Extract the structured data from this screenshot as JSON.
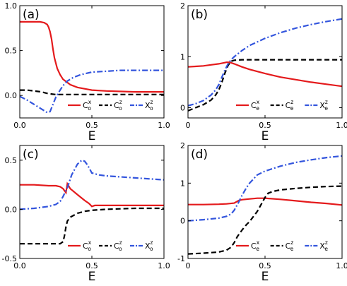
{
  "colors": {
    "red": "#e41a1c",
    "black": "#000000",
    "blue": "#3355dd"
  },
  "chart_data": [
    {
      "type": "line",
      "panel_label": "(a)",
      "xlabel": "E",
      "xlim": [
        0,
        1
      ],
      "ylim": [
        -0.25,
        1.0
      ],
      "x_ticks": [
        0,
        0.5,
        1
      ],
      "x_tick_labels": [
        "0.0",
        "0.5",
        "1.0"
      ],
      "y_ticks": [
        0,
        0.5,
        1.0
      ],
      "y_tick_labels": [
        "0.0",
        "0.5",
        "1.0"
      ],
      "legend": {
        "position": "bottom-right",
        "entries": [
          {
            "base": "C",
            "sup": "x",
            "sub": "o"
          },
          {
            "base": "C",
            "sup": "z",
            "sub": "o"
          },
          {
            "base": "X",
            "sup": "z",
            "sub": "o"
          }
        ]
      },
      "series": [
        {
          "color": "red",
          "dash": "solid",
          "x": [
            0,
            0.05,
            0.1,
            0.14,
            0.17,
            0.19,
            0.2,
            0.21,
            0.22,
            0.23,
            0.24,
            0.26,
            0.28,
            0.3,
            0.35,
            0.4,
            0.5,
            0.6,
            0.8,
            1.0
          ],
          "y": [
            0.82,
            0.82,
            0.82,
            0.82,
            0.81,
            0.79,
            0.76,
            0.71,
            0.63,
            0.52,
            0.42,
            0.3,
            0.23,
            0.18,
            0.12,
            0.09,
            0.06,
            0.05,
            0.04,
            0.04
          ]
        },
        {
          "color": "black",
          "dash": "dashed",
          "x": [
            0,
            0.05,
            0.1,
            0.15,
            0.2,
            0.25,
            0.3,
            0.4,
            0.6,
            0.8,
            1.0
          ],
          "y": [
            0.06,
            0.06,
            0.05,
            0.04,
            0.02,
            0.01,
            0.01,
            0.01,
            0.01,
            0.01,
            0.01
          ]
        },
        {
          "color": "blue",
          "dash": "dashdot",
          "x": [
            0,
            0.05,
            0.1,
            0.15,
            0.19,
            0.21,
            0.23,
            0.25,
            0.28,
            0.3,
            0.33,
            0.37,
            0.42,
            0.5,
            0.6,
            0.7,
            0.8,
            0.9,
            1.0
          ],
          "y": [
            -0.01,
            -0.05,
            -0.1,
            -0.15,
            -0.19,
            -0.18,
            -0.1,
            -0.02,
            0.06,
            0.11,
            0.16,
            0.2,
            0.23,
            0.26,
            0.27,
            0.28,
            0.28,
            0.28,
            0.28
          ]
        }
      ]
    },
    {
      "type": "line",
      "panel_label": "(b)",
      "xlabel": "E",
      "xlim": [
        0,
        1
      ],
      "ylim": [
        -0.2,
        2.0
      ],
      "x_ticks": [
        0,
        0.5,
        1
      ],
      "x_tick_labels": [
        "0",
        "0.5",
        "1.0"
      ],
      "y_ticks": [
        0,
        1,
        2
      ],
      "y_tick_labels": [
        "0",
        "1",
        "2"
      ],
      "legend": {
        "position": "bottom-right",
        "entries": [
          {
            "base": "C",
            "sup": "x",
            "sub": "e"
          },
          {
            "base": "C",
            "sup": "z",
            "sub": "e"
          },
          {
            "base": "X",
            "sup": "z",
            "sub": "e"
          }
        ]
      },
      "series": [
        {
          "color": "red",
          "dash": "solid",
          "x": [
            0,
            0.05,
            0.1,
            0.15,
            0.2,
            0.25,
            0.27,
            0.3,
            0.35,
            0.4,
            0.5,
            0.6,
            0.7,
            0.8,
            0.9,
            1.0
          ],
          "y": [
            0.8,
            0.81,
            0.82,
            0.84,
            0.86,
            0.89,
            0.89,
            0.86,
            0.8,
            0.75,
            0.67,
            0.6,
            0.55,
            0.5,
            0.46,
            0.42
          ]
        },
        {
          "color": "black",
          "dash": "dashed",
          "x": [
            0,
            0.05,
            0.1,
            0.15,
            0.18,
            0.2,
            0.22,
            0.24,
            0.26,
            0.28,
            0.3,
            0.35,
            0.4,
            0.5,
            0.7,
            1.0
          ],
          "y": [
            -0.06,
            0.0,
            0.06,
            0.15,
            0.25,
            0.35,
            0.5,
            0.68,
            0.83,
            0.91,
            0.93,
            0.94,
            0.94,
            0.94,
            0.94,
            0.94
          ]
        },
        {
          "color": "blue",
          "dash": "dashdot",
          "x": [
            0,
            0.05,
            0.1,
            0.15,
            0.18,
            0.2,
            0.22,
            0.24,
            0.26,
            0.28,
            0.3,
            0.35,
            0.4,
            0.5,
            0.6,
            0.7,
            0.8,
            0.9,
            1.0
          ],
          "y": [
            0.04,
            0.08,
            0.14,
            0.25,
            0.35,
            0.45,
            0.6,
            0.74,
            0.86,
            0.94,
            1.0,
            1.12,
            1.22,
            1.36,
            1.47,
            1.56,
            1.63,
            1.69,
            1.74
          ]
        }
      ]
    },
    {
      "type": "line",
      "panel_label": "(c)",
      "xlabel": "E",
      "xlim": [
        0,
        1
      ],
      "ylim": [
        -0.5,
        0.65
      ],
      "x_ticks": [
        0,
        0.5,
        1
      ],
      "x_tick_labels": [
        "0.0",
        "0.5",
        "1.0"
      ],
      "y_ticks": [
        -0.5,
        0,
        0.5
      ],
      "y_tick_labels": [
        "-0.5",
        "0.0",
        "0.5"
      ],
      "legend": {
        "position": "bottom-right",
        "entries": [
          {
            "base": "C",
            "sup": "x",
            "sub": "o"
          },
          {
            "base": "C",
            "sup": "z",
            "sub": "o"
          },
          {
            "base": "X",
            "sup": "z",
            "sub": "o"
          }
        ]
      },
      "series": [
        {
          "color": "red",
          "dash": "solid",
          "x": [
            0,
            0.1,
            0.2,
            0.25,
            0.28,
            0.3,
            0.32,
            0.33,
            0.35,
            0.4,
            0.45,
            0.48,
            0.5,
            0.52,
            0.6,
            0.8,
            1.0
          ],
          "y": [
            0.25,
            0.25,
            0.24,
            0.24,
            0.23,
            0.21,
            0.17,
            0.26,
            0.21,
            0.15,
            0.09,
            0.06,
            0.03,
            0.04,
            0.04,
            0.04,
            0.04
          ]
        },
        {
          "color": "black",
          "dash": "dashed",
          "x": [
            0,
            0.1,
            0.2,
            0.28,
            0.3,
            0.31,
            0.32,
            0.33,
            0.35,
            0.4,
            0.45,
            0.5,
            0.6,
            0.8,
            1.0
          ],
          "y": [
            -0.35,
            -0.35,
            -0.35,
            -0.35,
            -0.33,
            -0.27,
            -0.18,
            -0.12,
            -0.08,
            -0.04,
            -0.02,
            -0.01,
            0.0,
            0.01,
            0.01
          ]
        },
        {
          "color": "blue",
          "dash": "dashdot",
          "x": [
            0,
            0.1,
            0.2,
            0.25,
            0.28,
            0.3,
            0.33,
            0.36,
            0.4,
            0.43,
            0.45,
            0.47,
            0.5,
            0.55,
            0.6,
            0.8,
            1.0
          ],
          "y": [
            0.0,
            0.01,
            0.03,
            0.05,
            0.08,
            0.13,
            0.22,
            0.35,
            0.46,
            0.5,
            0.49,
            0.45,
            0.37,
            0.35,
            0.34,
            0.32,
            0.3
          ]
        }
      ]
    },
    {
      "type": "line",
      "panel_label": "(d)",
      "xlabel": "E",
      "xlim": [
        0,
        1
      ],
      "ylim": [
        -1.0,
        2.0
      ],
      "x_ticks": [
        0,
        0.5,
        1
      ],
      "x_tick_labels": [
        "0",
        "0.5",
        "1.0"
      ],
      "y_ticks": [
        -1,
        0,
        1,
        2
      ],
      "y_tick_labels": [
        "-1",
        "0",
        "1",
        "2"
      ],
      "legend": {
        "position": "bottom-right",
        "entries": [
          {
            "base": "C",
            "sup": "x",
            "sub": "e"
          },
          {
            "base": "C",
            "sup": "z",
            "sub": "e"
          },
          {
            "base": "X",
            "sup": "z",
            "sub": "e"
          }
        ]
      },
      "series": [
        {
          "color": "red",
          "dash": "solid",
          "x": [
            0,
            0.1,
            0.2,
            0.25,
            0.3,
            0.33,
            0.35,
            0.4,
            0.45,
            0.5,
            0.6,
            0.7,
            0.8,
            0.9,
            1.0
          ],
          "y": [
            0.43,
            0.43,
            0.44,
            0.45,
            0.47,
            0.54,
            0.56,
            0.58,
            0.6,
            0.6,
            0.57,
            0.53,
            0.49,
            0.46,
            0.42
          ]
        },
        {
          "color": "black",
          "dash": "dashed",
          "x": [
            0,
            0.1,
            0.2,
            0.25,
            0.28,
            0.3,
            0.32,
            0.35,
            0.38,
            0.4,
            0.45,
            0.5,
            0.52,
            0.55,
            0.6,
            0.7,
            0.8,
            0.9,
            1.0
          ],
          "y": [
            -0.88,
            -0.86,
            -0.83,
            -0.78,
            -0.7,
            -0.58,
            -0.42,
            -0.25,
            -0.1,
            -0.02,
            0.25,
            0.62,
            0.73,
            0.78,
            0.82,
            0.86,
            0.89,
            0.91,
            0.92
          ]
        },
        {
          "color": "blue",
          "dash": "dashdot",
          "x": [
            0,
            0.1,
            0.2,
            0.25,
            0.28,
            0.3,
            0.33,
            0.35,
            0.38,
            0.4,
            0.45,
            0.5,
            0.6,
            0.7,
            0.8,
            0.9,
            1.0
          ],
          "y": [
            0.0,
            0.03,
            0.07,
            0.12,
            0.18,
            0.28,
            0.5,
            0.67,
            0.88,
            1.0,
            1.22,
            1.32,
            1.45,
            1.55,
            1.62,
            1.68,
            1.72
          ]
        }
      ]
    }
  ]
}
